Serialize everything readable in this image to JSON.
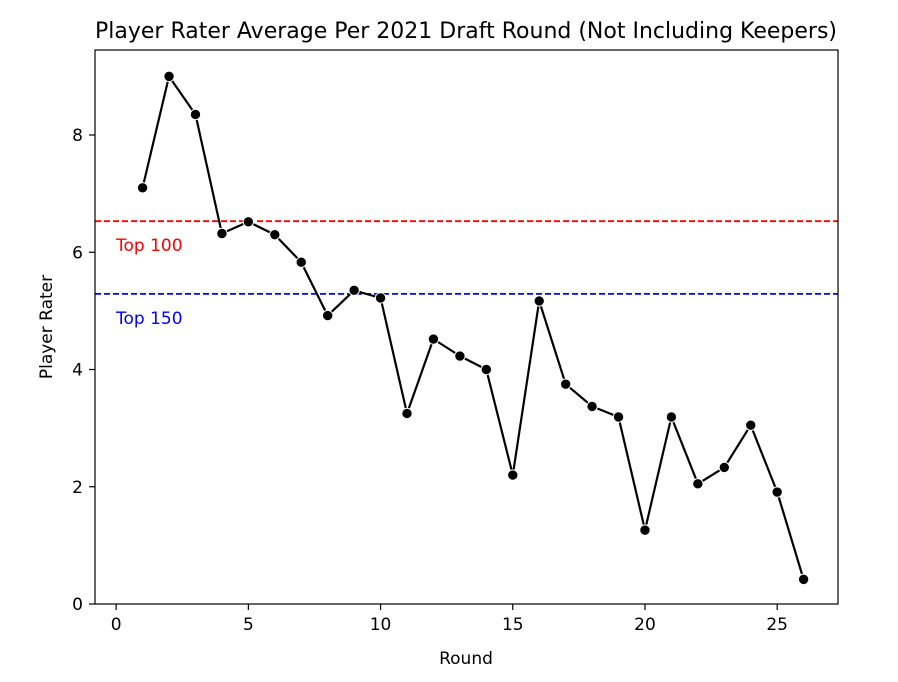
{
  "chart_data": {
    "type": "line",
    "title": "Player Rater Average Per 2021 Draft Round (Not Including Keepers)",
    "xlabel": "Round",
    "ylabel": "Player Rater",
    "xlim": [
      -0.8,
      27.3
    ],
    "ylim": [
      0,
      9.45
    ],
    "xticks": [
      0,
      5,
      10,
      15,
      20,
      25
    ],
    "yticks": [
      0,
      2,
      4,
      6,
      8
    ],
    "grid": false,
    "line_color": "#000000",
    "marker": "circle",
    "x": [
      1,
      2,
      3,
      4,
      5,
      6,
      7,
      8,
      9,
      10,
      11,
      12,
      13,
      14,
      15,
      16,
      17,
      18,
      19,
      20,
      21,
      22,
      23,
      24,
      25,
      26
    ],
    "y": [
      7.1,
      9.0,
      8.35,
      6.32,
      6.52,
      6.3,
      5.83,
      4.92,
      5.35,
      5.22,
      3.25,
      4.52,
      4.23,
      4.0,
      2.2,
      5.17,
      3.75,
      3.37,
      3.19,
      1.26,
      3.19,
      2.05,
      2.33,
      3.05,
      1.91,
      0.42
    ],
    "reference_lines": [
      {
        "label": "Top 100",
        "y": 6.53,
        "color": "#ff0000",
        "style": "dashed"
      },
      {
        "label": "Top 150",
        "y": 5.29,
        "color": "#0000ff",
        "style": "dashed"
      }
    ]
  }
}
